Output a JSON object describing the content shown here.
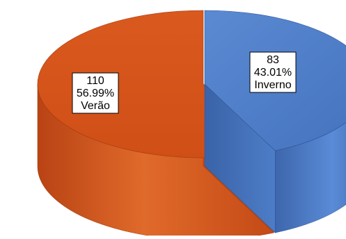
{
  "chart_data": {
    "type": "pie",
    "style": "3d-exploded",
    "title": "",
    "legend": "none",
    "slices": [
      {
        "name": "Verão",
        "value": 110,
        "percent": "56.99%",
        "color": "#d6561c"
      },
      {
        "name": "Inverno",
        "value": 83,
        "percent": "43.01%",
        "color": "#4a78c2"
      }
    ]
  }
}
